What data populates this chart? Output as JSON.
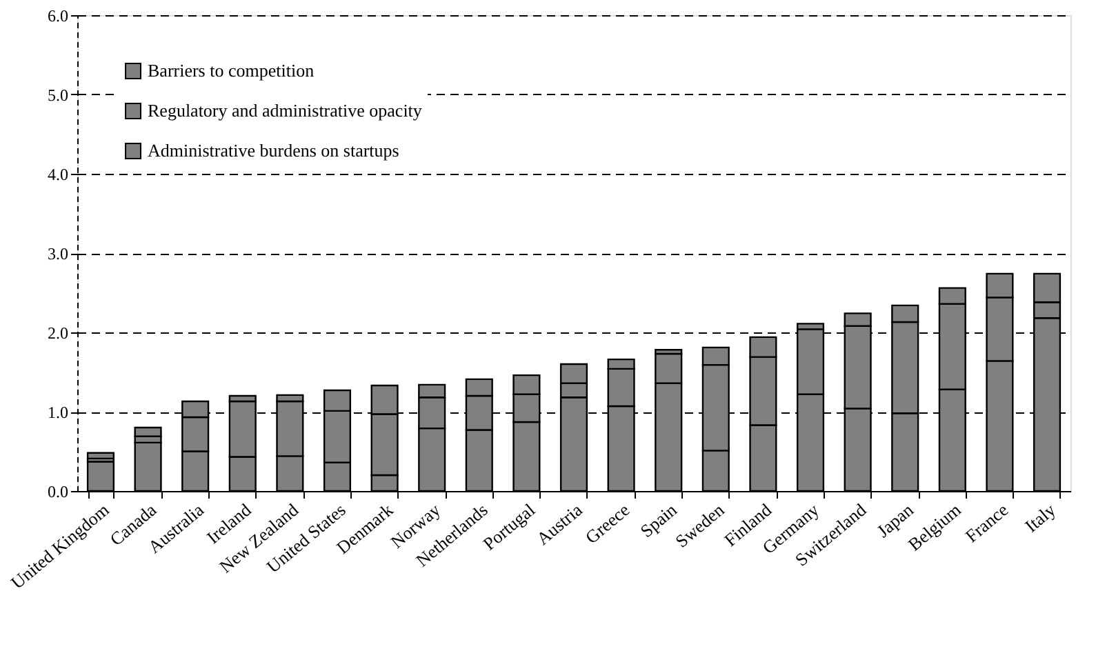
{
  "chart_data": {
    "type": "bar",
    "stacked": true,
    "categories": [
      "United Kingdom",
      "Canada",
      "Australia",
      "Ireland",
      "New Zealand",
      "United States",
      "Denmark",
      "Norway",
      "Netherlands",
      "Portugal",
      "Austria",
      "Greece",
      "Spain",
      "Sweden",
      "Finland",
      "Germany",
      "Switzerland",
      "Japan",
      "Belgium",
      "France",
      "Italy"
    ],
    "series": [
      {
        "name": "Administrative burdens on startups",
        "color": "#808080",
        "values": [
          0.37,
          0.61,
          0.5,
          0.43,
          0.44,
          0.36,
          0.2,
          0.79,
          0.77,
          0.87,
          1.18,
          1.07,
          1.36,
          0.51,
          0.83,
          1.22,
          1.04,
          0.98,
          1.28,
          1.64,
          2.18
        ]
      },
      {
        "name": "Regulatory and administrative opacity",
        "color": "#808080",
        "values": [
          0.04,
          0.08,
          0.43,
          0.7,
          0.69,
          0.65,
          0.77,
          0.39,
          0.43,
          0.35,
          0.18,
          0.47,
          0.37,
          1.08,
          0.86,
          0.82,
          1.04,
          1.15,
          1.08,
          0.8,
          0.2
        ]
      },
      {
        "name": "Barriers to competition",
        "color": "#808080",
        "values": [
          0.07,
          0.11,
          0.2,
          0.07,
          0.08,
          0.26,
          0.36,
          0.16,
          0.21,
          0.24,
          0.24,
          0.12,
          0.05,
          0.22,
          0.25,
          0.07,
          0.16,
          0.21,
          0.2,
          0.3,
          0.36
        ]
      }
    ],
    "ylim": [
      0,
      6
    ],
    "yticks": [
      {
        "value": 0,
        "label": "0.0"
      },
      {
        "value": 1,
        "label": "1.0"
      },
      {
        "value": 2,
        "label": "2.0"
      },
      {
        "value": 3,
        "label": "3.0"
      },
      {
        "value": 4,
        "label": "4.0"
      },
      {
        "value": 5,
        "label": "5.0"
      },
      {
        "value": 6,
        "label": "6.0"
      }
    ],
    "grid": "y",
    "legend": "top left"
  }
}
